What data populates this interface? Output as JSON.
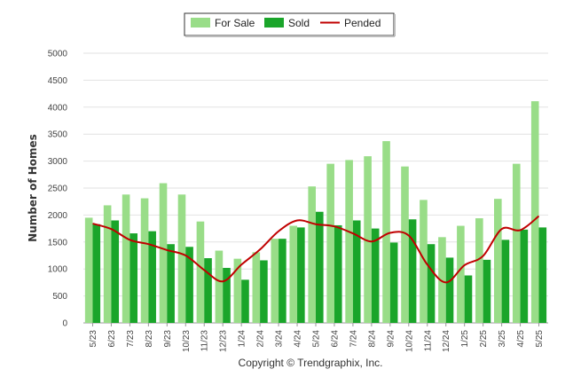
{
  "chart_data": {
    "type": "bar",
    "ylabel": "Number of Homes",
    "xlabel": "",
    "ylim": [
      0,
      5000
    ],
    "yticks": [
      0,
      500,
      1000,
      1500,
      2000,
      2500,
      3000,
      3500,
      4000,
      4500,
      5000
    ],
    "grid": true,
    "legend_position": "top-center",
    "categories": [
      "5/23",
      "6/23",
      "7/23",
      "8/23",
      "9/23",
      "10/23",
      "11/23",
      "12/23",
      "1/24",
      "2/24",
      "3/24",
      "4/24",
      "5/24",
      "6/24",
      "7/24",
      "8/24",
      "9/24",
      "10/24",
      "11/24",
      "12/24",
      "1/25",
      "2/25",
      "3/25",
      "4/25",
      "5/25"
    ],
    "series": [
      {
        "name": "For Sale",
        "kind": "bar",
        "color": "#99dd88",
        "values": [
          1950,
          2180,
          2380,
          2310,
          2590,
          2380,
          1880,
          1340,
          1190,
          1310,
          1560,
          1800,
          2530,
          2950,
          3020,
          3090,
          3370,
          2900,
          2280,
          1590,
          1800,
          1940,
          2300,
          2950,
          4110
        ]
      },
      {
        "name": "Sold",
        "kind": "bar",
        "color": "#1aa52a",
        "values": [
          1830,
          1900,
          1660,
          1700,
          1460,
          1410,
          1200,
          1020,
          800,
          1160,
          1560,
          1770,
          2060,
          1810,
          1900,
          1750,
          1490,
          1920,
          1460,
          1210,
          880,
          1170,
          1540,
          1730,
          1770
        ]
      },
      {
        "name": "Pended",
        "kind": "line",
        "color": "#c00000",
        "values": [
          1840,
          1740,
          1540,
          1460,
          1350,
          1250,
          980,
          770,
          1080,
          1360,
          1700,
          1900,
          1830,
          1790,
          1660,
          1510,
          1670,
          1620,
          1080,
          750,
          1070,
          1240,
          1740,
          1720,
          1980
        ]
      }
    ]
  },
  "footer": {
    "copyright": "Copyright © Trendgraphix, Inc."
  }
}
